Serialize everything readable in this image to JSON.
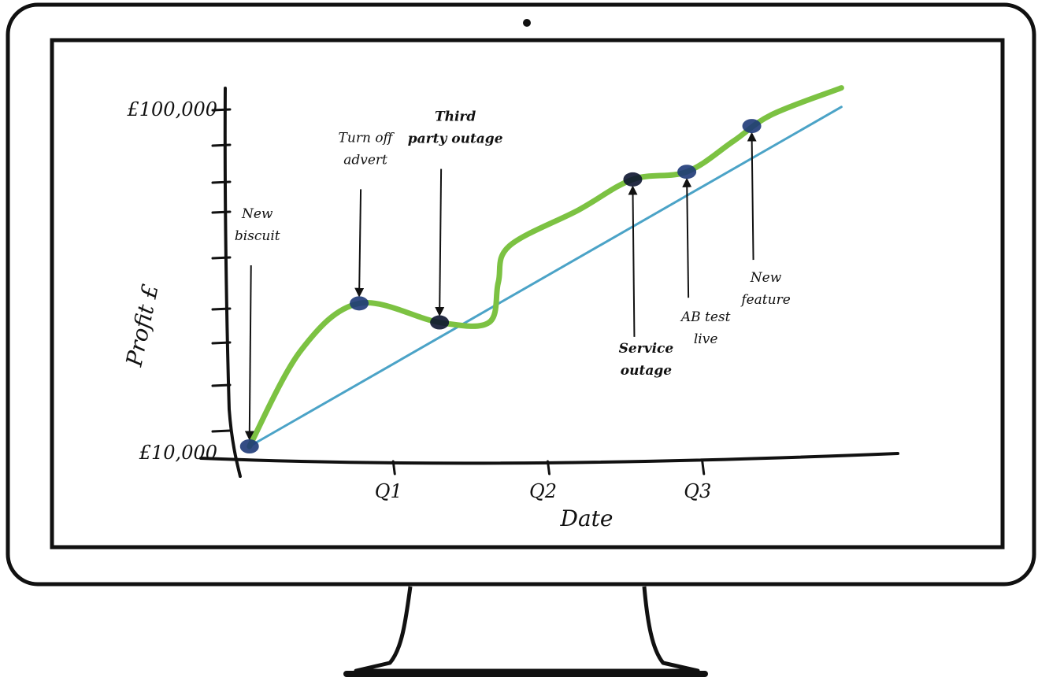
{
  "colors": {
    "frame": "#111111",
    "actual_line": "#7cc242",
    "trend_line": "#4ba3c7",
    "marker": "#1e3a78",
    "marker_dark": "#0d1530"
  },
  "chart_data": {
    "type": "line",
    "title": "",
    "xlabel": "Date",
    "ylabel": "Profit £",
    "x_ticks": [
      {
        "label": "Q1",
        "x": 1
      },
      {
        "label": "Q2",
        "x": 2
      },
      {
        "label": "Q3",
        "x": 3
      }
    ],
    "y_tick_labels": [
      {
        "label": "£10,000",
        "y": 10000
      },
      {
        "label": "£100,000",
        "y": 100000
      }
    ],
    "xlim": [
      0,
      4
    ],
    "ylim": [
      10000,
      100000
    ],
    "grid": false,
    "legend": "none",
    "series": [
      {
        "color": "#7cc242",
        "x": [
          0.07,
          0.4,
          0.78,
          1.3,
          1.62,
          1.68,
          1.75,
          2.2,
          2.55,
          2.9,
          3.2,
          3.45,
          3.9
        ],
        "y": [
          10000,
          35000,
          47500,
          42500,
          42500,
          53000,
          62500,
          72000,
          80000,
          82000,
          90000,
          97000,
          104000
        ]
      },
      {
        "color": "#4ba3c7",
        "x": [
          0.07,
          3.9
        ],
        "y": [
          10000,
          99000
        ]
      }
    ],
    "events": [
      {
        "label_lines": [
          "New",
          "biscuit"
        ],
        "x": 0.07,
        "y": 10000,
        "bold": false
      },
      {
        "label_lines": [
          "Turn off",
          "advert"
        ],
        "x": 0.78,
        "y": 47500,
        "bold": false
      },
      {
        "label_lines": [
          "Third",
          "party outage"
        ],
        "x": 1.3,
        "y": 42500,
        "bold": true
      },
      {
        "label_lines": [
          "Service",
          "outage"
        ],
        "x": 2.55,
        "y": 80000,
        "bold": true
      },
      {
        "label_lines": [
          "AB test",
          "live"
        ],
        "x": 2.9,
        "y": 82000,
        "bold": false
      },
      {
        "label_lines": [
          "New",
          "feature"
        ],
        "x": 3.32,
        "y": 94000,
        "bold": false
      }
    ]
  }
}
